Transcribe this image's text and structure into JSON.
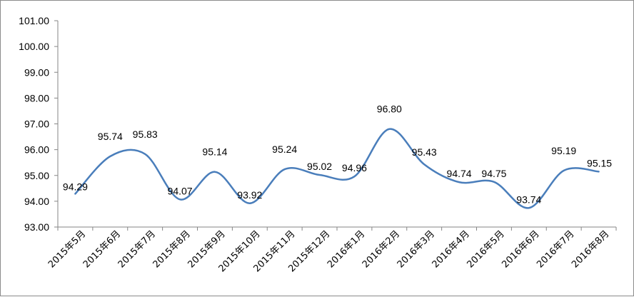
{
  "chart_data": {
    "type": "line",
    "title": "",
    "xlabel": "",
    "ylabel": "",
    "ylim": [
      93,
      101
    ],
    "y_ticks": [
      "93.00",
      "94.00",
      "95.00",
      "96.00",
      "97.00",
      "98.00",
      "99.00",
      "100.00",
      "101.00"
    ],
    "grid": false,
    "legend": "none",
    "smooth": true,
    "line_color": "#4a7ebb",
    "categories": [
      "2015年5月",
      "2015年6月",
      "2015年7月",
      "2015年8月",
      "2015年9月",
      "2015年10月",
      "2015年11月",
      "2015年12月",
      "2016年1月",
      "2016年2月",
      "2016年3月",
      "2016年4月",
      "2016年5月",
      "2016年6月",
      "2016年7月",
      "2016年8月"
    ],
    "values": [
      94.29,
      95.74,
      95.83,
      94.07,
      95.14,
      93.92,
      95.24,
      95.02,
      94.96,
      96.8,
      95.43,
      94.74,
      94.75,
      93.74,
      95.19,
      95.15
    ],
    "data_labels": [
      "94.29",
      "95.74",
      "95.83",
      "94.07",
      "95.14",
      "93.92",
      "95.24",
      "95.02",
      "94.96",
      "96.80",
      "95.43",
      "94.74",
      "94.75",
      "93.74",
      "95.19",
      "95.15"
    ]
  }
}
